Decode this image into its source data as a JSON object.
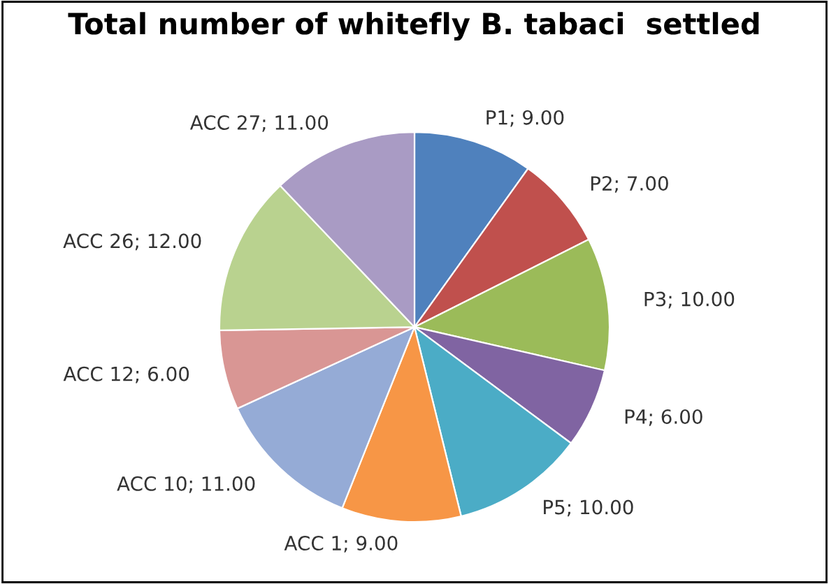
{
  "chart_data": {
    "type": "pie",
    "title": "Total number of whitefly B. tabaci  settled",
    "categories": [
      "P1",
      "P2",
      "P3",
      "P4",
      "P5",
      "ACC 1",
      "ACC 10",
      "ACC 12",
      "ACC 26",
      "ACC 27"
    ],
    "values": [
      9,
      7,
      10,
      6,
      10,
      9,
      11,
      6,
      12,
      11
    ],
    "colors": [
      "#4f81bd",
      "#c0504d",
      "#9bbb59",
      "#8064a2",
      "#4bacc6",
      "#f79646",
      "#95abd6",
      "#d99694",
      "#b9d28f",
      "#a99bc4"
    ],
    "value_labels": [
      "9.00",
      "7.00",
      "10.00",
      "6.00",
      "10.00",
      "9.00",
      "11.00",
      "6.00",
      "12.00",
      "11.00"
    ],
    "legend": false
  }
}
